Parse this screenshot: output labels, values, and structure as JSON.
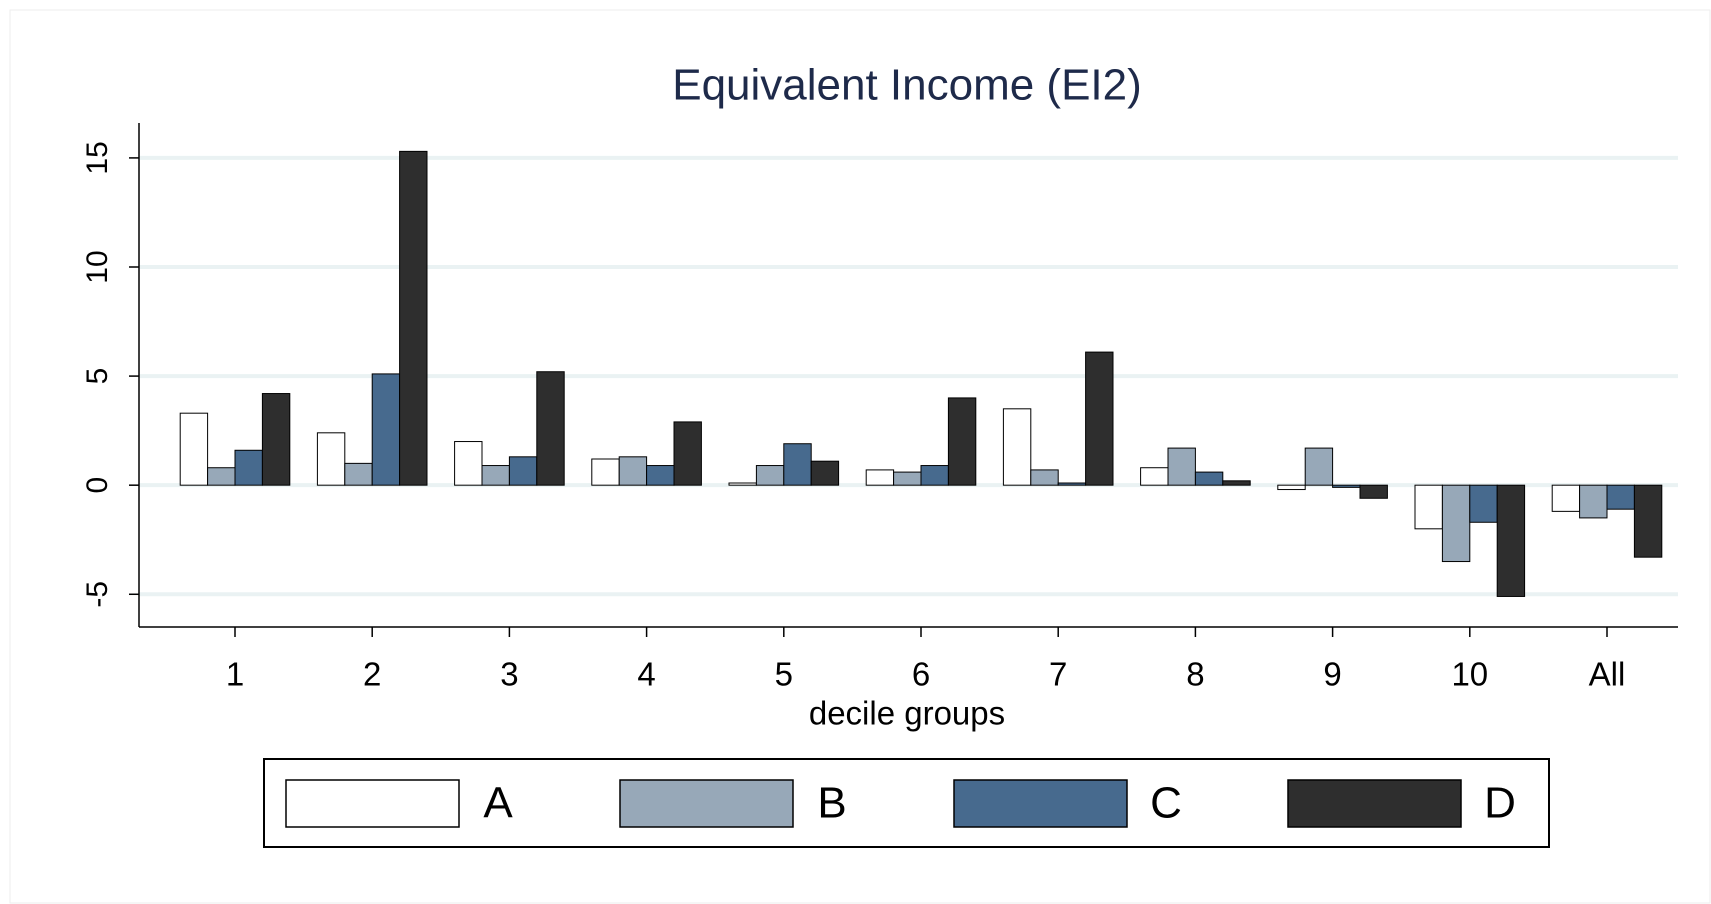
{
  "chart_data": {
    "type": "bar",
    "title": "Equivalent Income (EI2)",
    "x_label": "decile groups",
    "categories": [
      "1",
      "2",
      "3",
      "4",
      "5",
      "6",
      "7",
      "8",
      "9",
      "10",
      "All"
    ],
    "series": [
      {
        "name": "A",
        "color": "#ffffff",
        "values": [
          3.3,
          2.4,
          2.0,
          1.2,
          0.1,
          0.7,
          3.5,
          0.8,
          -0.2,
          -2.0,
          -1.2
        ]
      },
      {
        "name": "B",
        "color": "#97a8b8",
        "values": [
          0.8,
          1.0,
          0.9,
          1.3,
          0.9,
          0.6,
          0.7,
          1.7,
          1.7,
          -3.5,
          -1.5
        ]
      },
      {
        "name": "C",
        "color": "#476a8e",
        "values": [
          1.6,
          5.1,
          1.3,
          0.9,
          1.9,
          0.9,
          0.1,
          0.6,
          -0.1,
          -1.7,
          -1.1
        ]
      },
      {
        "name": "D",
        "color": "#2e2e2e",
        "values": [
          4.2,
          15.3,
          5.2,
          2.9,
          1.1,
          4.0,
          6.1,
          0.2,
          -0.6,
          -5.1,
          -3.3
        ]
      }
    ],
    "ylim": [
      -6.5,
      16.6
    ],
    "yticks": [
      -5,
      0,
      5,
      10,
      15
    ],
    "grid": true,
    "legend": "bottom"
  }
}
